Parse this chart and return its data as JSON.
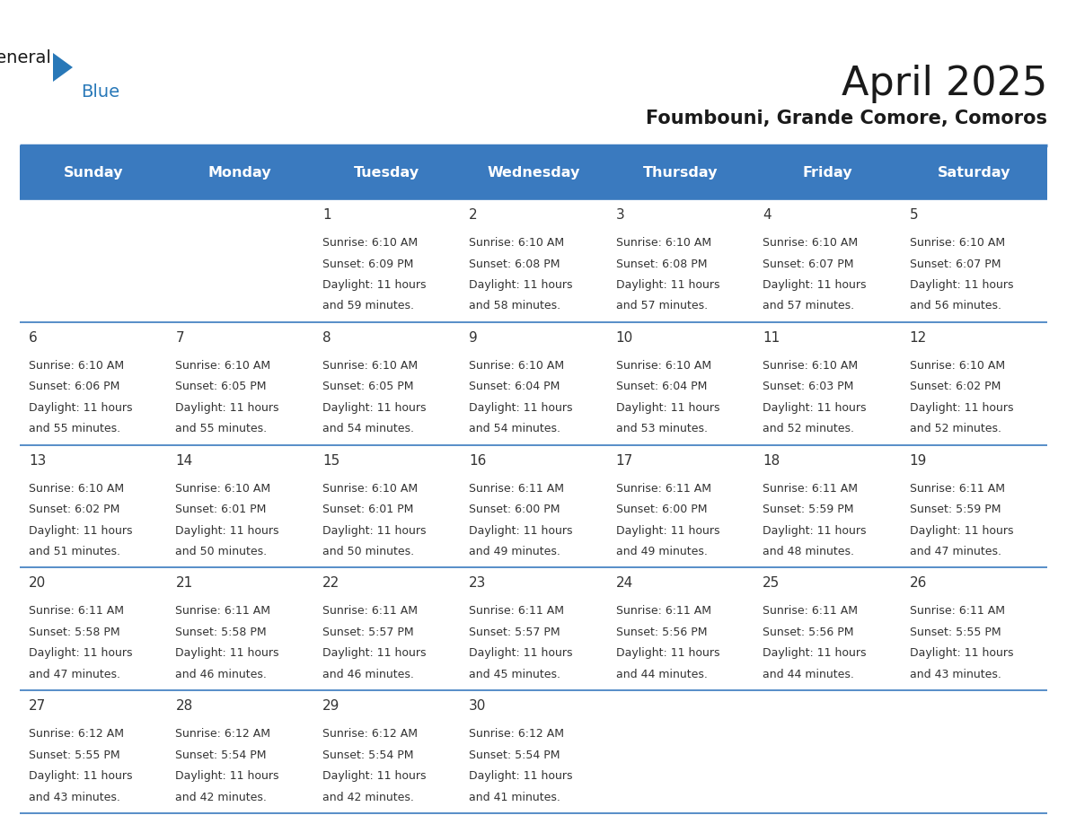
{
  "title": "April 2025",
  "subtitle": "Foumbouni, Grande Comore, Comoros",
  "days_of_week": [
    "Sunday",
    "Monday",
    "Tuesday",
    "Wednesday",
    "Thursday",
    "Friday",
    "Saturday"
  ],
  "header_bg": "#3a7abf",
  "header_text": "#ffffff",
  "row_bg": "#ffffff",
  "divider_color": "#3a7abf",
  "text_color": "#333333",
  "title_color": "#1a1a1a",
  "subtitle_color": "#1a1a1a",
  "logo_general_color": "#1a1a1a",
  "logo_blue_color": "#2878b8",
  "logo_triangle_color": "#2878b8",
  "calendar_data": [
    [
      null,
      null,
      {
        "day": 1,
        "sunrise": "6:10 AM",
        "sunset": "6:09 PM",
        "daylight_hrs": 11,
        "daylight_min": 59
      },
      {
        "day": 2,
        "sunrise": "6:10 AM",
        "sunset": "6:08 PM",
        "daylight_hrs": 11,
        "daylight_min": 58
      },
      {
        "day": 3,
        "sunrise": "6:10 AM",
        "sunset": "6:08 PM",
        "daylight_hrs": 11,
        "daylight_min": 57
      },
      {
        "day": 4,
        "sunrise": "6:10 AM",
        "sunset": "6:07 PM",
        "daylight_hrs": 11,
        "daylight_min": 57
      },
      {
        "day": 5,
        "sunrise": "6:10 AM",
        "sunset": "6:07 PM",
        "daylight_hrs": 11,
        "daylight_min": 56
      }
    ],
    [
      {
        "day": 6,
        "sunrise": "6:10 AM",
        "sunset": "6:06 PM",
        "daylight_hrs": 11,
        "daylight_min": 55
      },
      {
        "day": 7,
        "sunrise": "6:10 AM",
        "sunset": "6:05 PM",
        "daylight_hrs": 11,
        "daylight_min": 55
      },
      {
        "day": 8,
        "sunrise": "6:10 AM",
        "sunset": "6:05 PM",
        "daylight_hrs": 11,
        "daylight_min": 54
      },
      {
        "day": 9,
        "sunrise": "6:10 AM",
        "sunset": "6:04 PM",
        "daylight_hrs": 11,
        "daylight_min": 54
      },
      {
        "day": 10,
        "sunrise": "6:10 AM",
        "sunset": "6:04 PM",
        "daylight_hrs": 11,
        "daylight_min": 53
      },
      {
        "day": 11,
        "sunrise": "6:10 AM",
        "sunset": "6:03 PM",
        "daylight_hrs": 11,
        "daylight_min": 52
      },
      {
        "day": 12,
        "sunrise": "6:10 AM",
        "sunset": "6:02 PM",
        "daylight_hrs": 11,
        "daylight_min": 52
      }
    ],
    [
      {
        "day": 13,
        "sunrise": "6:10 AM",
        "sunset": "6:02 PM",
        "daylight_hrs": 11,
        "daylight_min": 51
      },
      {
        "day": 14,
        "sunrise": "6:10 AM",
        "sunset": "6:01 PM",
        "daylight_hrs": 11,
        "daylight_min": 50
      },
      {
        "day": 15,
        "sunrise": "6:10 AM",
        "sunset": "6:01 PM",
        "daylight_hrs": 11,
        "daylight_min": 50
      },
      {
        "day": 16,
        "sunrise": "6:11 AM",
        "sunset": "6:00 PM",
        "daylight_hrs": 11,
        "daylight_min": 49
      },
      {
        "day": 17,
        "sunrise": "6:11 AM",
        "sunset": "6:00 PM",
        "daylight_hrs": 11,
        "daylight_min": 49
      },
      {
        "day": 18,
        "sunrise": "6:11 AM",
        "sunset": "5:59 PM",
        "daylight_hrs": 11,
        "daylight_min": 48
      },
      {
        "day": 19,
        "sunrise": "6:11 AM",
        "sunset": "5:59 PM",
        "daylight_hrs": 11,
        "daylight_min": 47
      }
    ],
    [
      {
        "day": 20,
        "sunrise": "6:11 AM",
        "sunset": "5:58 PM",
        "daylight_hrs": 11,
        "daylight_min": 47
      },
      {
        "day": 21,
        "sunrise": "6:11 AM",
        "sunset": "5:58 PM",
        "daylight_hrs": 11,
        "daylight_min": 46
      },
      {
        "day": 22,
        "sunrise": "6:11 AM",
        "sunset": "5:57 PM",
        "daylight_hrs": 11,
        "daylight_min": 46
      },
      {
        "day": 23,
        "sunrise": "6:11 AM",
        "sunset": "5:57 PM",
        "daylight_hrs": 11,
        "daylight_min": 45
      },
      {
        "day": 24,
        "sunrise": "6:11 AM",
        "sunset": "5:56 PM",
        "daylight_hrs": 11,
        "daylight_min": 44
      },
      {
        "day": 25,
        "sunrise": "6:11 AM",
        "sunset": "5:56 PM",
        "daylight_hrs": 11,
        "daylight_min": 44
      },
      {
        "day": 26,
        "sunrise": "6:11 AM",
        "sunset": "5:55 PM",
        "daylight_hrs": 11,
        "daylight_min": 43
      }
    ],
    [
      {
        "day": 27,
        "sunrise": "6:12 AM",
        "sunset": "5:55 PM",
        "daylight_hrs": 11,
        "daylight_min": 43
      },
      {
        "day": 28,
        "sunrise": "6:12 AM",
        "sunset": "5:54 PM",
        "daylight_hrs": 11,
        "daylight_min": 42
      },
      {
        "day": 29,
        "sunrise": "6:12 AM",
        "sunset": "5:54 PM",
        "daylight_hrs": 11,
        "daylight_min": 42
      },
      {
        "day": 30,
        "sunrise": "6:12 AM",
        "sunset": "5:54 PM",
        "daylight_hrs": 11,
        "daylight_min": 41
      },
      null,
      null,
      null
    ]
  ]
}
